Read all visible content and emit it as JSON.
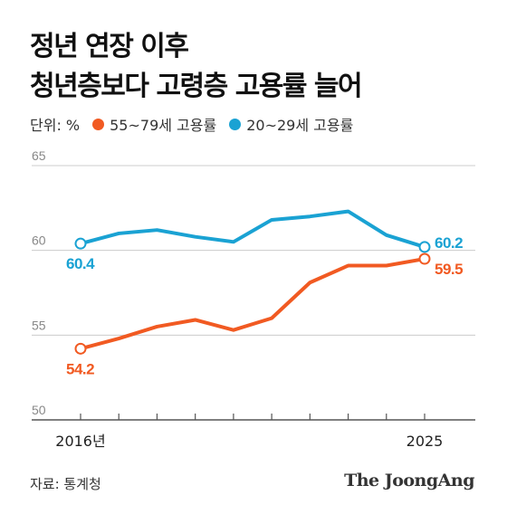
{
  "title": {
    "line1": "정년 연장 이후",
    "line2": "청년층보다 고령층 고용률 늘어"
  },
  "legend": {
    "unit": "단위: %",
    "items": [
      {
        "label": "55~79세 고용률",
        "color": "#f15a22"
      },
      {
        "label": "20~29세 고용률",
        "color": "#1aa2d3"
      }
    ]
  },
  "source": "자료: 통계청",
  "brand": "The JoongAng",
  "chart_data": {
    "type": "line",
    "x": [
      2016,
      2017,
      2018,
      2019,
      2020,
      2021,
      2022,
      2023,
      2024,
      2025
    ],
    "x_tick_labels": {
      "first": "2016년",
      "last": "2025"
    },
    "ylim": [
      50,
      65
    ],
    "yticks": [
      50,
      55,
      60,
      65
    ],
    "grid": true,
    "series": [
      {
        "name": "55~79세 고용률",
        "color": "#f15a22",
        "values": [
          54.2,
          54.8,
          55.5,
          55.9,
          55.3,
          56.0,
          58.1,
          59.1,
          59.1,
          59.5
        ],
        "labels": {
          "start": "54.2",
          "end": "59.5"
        }
      },
      {
        "name": "20~29세 고용률",
        "color": "#1aa2d3",
        "values": [
          60.4,
          61.0,
          61.2,
          60.8,
          60.5,
          61.8,
          62.0,
          62.3,
          60.9,
          60.2
        ],
        "labels": {
          "start": "60.4",
          "end": "60.2"
        }
      }
    ]
  }
}
